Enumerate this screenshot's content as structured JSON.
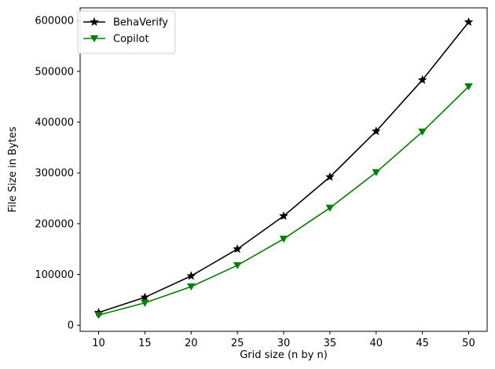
{
  "chart_data": {
    "type": "line",
    "title": "",
    "xlabel": "Grid size (n by n)",
    "ylabel": "File Size in Bytes",
    "xlim": [
      8,
      52
    ],
    "ylim": [
      -12000,
      625000
    ],
    "xticks": [
      10,
      15,
      20,
      25,
      30,
      35,
      40,
      45,
      50
    ],
    "yticks": [
      0,
      100000,
      200000,
      300000,
      400000,
      500000,
      600000
    ],
    "grid": false,
    "legend_position": "top-left",
    "x": [
      10,
      15,
      20,
      25,
      30,
      35,
      40,
      45,
      50
    ],
    "series": [
      {
        "name": "BehaVerify",
        "color": "#000000",
        "marker": "star",
        "values": [
          25000,
          55000,
          97000,
          150000,
          215000,
          292000,
          382000,
          483000,
          597000
        ]
      },
      {
        "name": "Copilot",
        "color": "#008000",
        "marker": "triangle-down",
        "values": [
          20000,
          44000,
          76000,
          118000,
          170000,
          231000,
          301000,
          381000,
          470000
        ]
      }
    ]
  }
}
